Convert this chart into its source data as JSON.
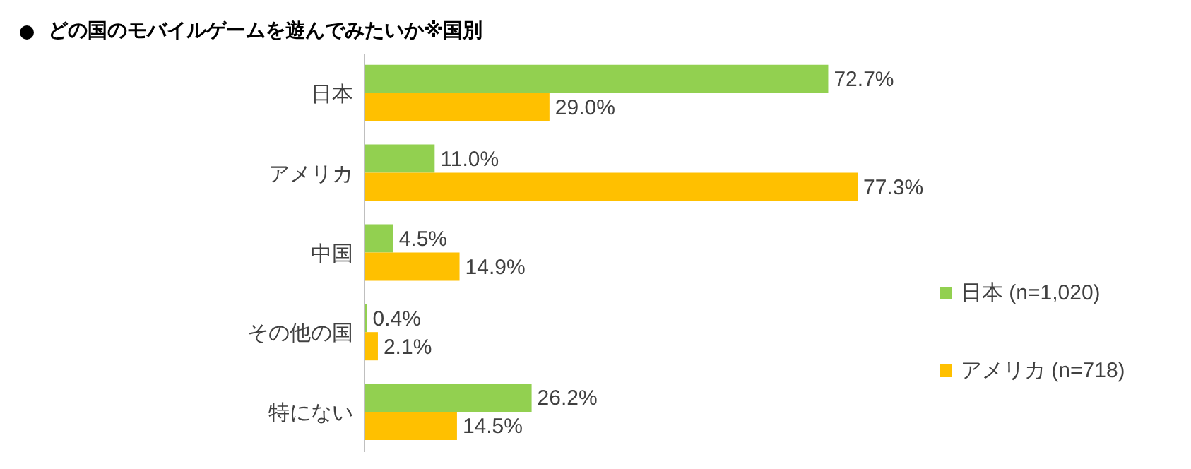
{
  "chart_data": {
    "type": "bar",
    "orientation": "horizontal",
    "title": "どの国のモバイルゲームを遊んでみたいか※国別",
    "categories": [
      "日本",
      "アメリカ",
      "中国",
      "その他の国",
      "特にない"
    ],
    "series": [
      {
        "name": "日本 (n=1,020)",
        "color": "#92d050",
        "values": [
          72.7,
          11.0,
          4.5,
          0.4,
          26.2
        ],
        "value_labels": [
          "72.7%",
          "11.0%",
          "4.5%",
          "0.4%",
          "26.2%"
        ]
      },
      {
        "name": "アメリカ (n=718)",
        "color": "#ffc000",
        "values": [
          29.0,
          77.3,
          14.9,
          2.1,
          14.5
        ],
        "value_labels": [
          "29.0%",
          "77.3%",
          "14.9%",
          "2.1%",
          "14.5%"
        ]
      }
    ],
    "tick_labels": "y",
    "legend": "right",
    "grid": false
  }
}
